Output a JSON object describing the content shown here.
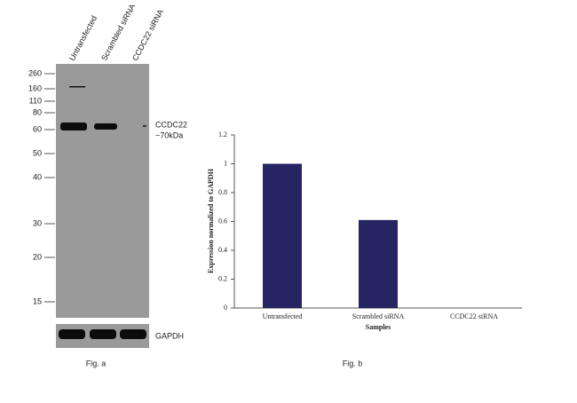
{
  "blot": {
    "lanes": [
      "Untransfected",
      "Scrambled siRNA",
      "CCDC22 siRNA"
    ],
    "markers": [
      260,
      160,
      110,
      80,
      60,
      50,
      40,
      30,
      20,
      15
    ],
    "target": "CCDC22",
    "size": "~70kDa",
    "control": "GAPDH",
    "caption": "Fig. a"
  },
  "chart_data": {
    "type": "bar",
    "caption": "Fig. b",
    "x_label": "Samples",
    "y_label": "Expression normalized to GAPDH",
    "categories": [
      "Untransfected",
      "Scrambled siRNA",
      "CCDC22 siRNA"
    ],
    "values": [
      1,
      0.61,
      0
    ],
    "color": "#252563",
    "ylim": [
      0,
      1.2
    ],
    "yticks": [
      0,
      0.2,
      0.4,
      0.6,
      0.8,
      1,
      1.2
    ]
  }
}
